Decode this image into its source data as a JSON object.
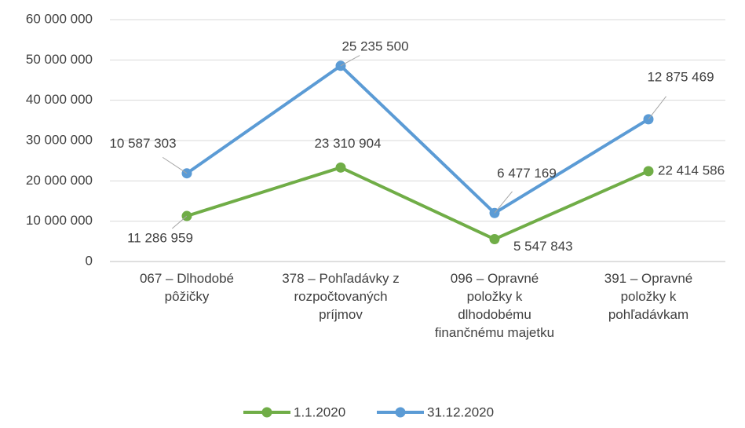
{
  "chart_data": {
    "type": "line",
    "stacked": true,
    "categories": [
      "067 – Dlhodobé pôžičky",
      "378 – Pohľadávky z rozpočtovaných príjmov",
      "096 – Opravné položky k dlhodobému finančnému majetku",
      "391 – Opravné položky k pohľadávkam"
    ],
    "series": [
      {
        "name": "1.1.2020",
        "color": "#70ad47",
        "values": [
          11286959,
          23310904,
          5547843,
          22414586
        ],
        "value_labels": [
          "11 286 959",
          "23 310 904",
          "5 547 843",
          "22 414 586"
        ]
      },
      {
        "name": "31.12.2020",
        "color": "#5b9bd5",
        "values": [
          10587303,
          25235500,
          6477169,
          12875469
        ],
        "value_labels": [
          "10 587 303",
          "25 235 500",
          "6 477 169",
          "12 875 469"
        ]
      }
    ],
    "ylim": [
      0,
      60000000
    ],
    "yticks": [
      0,
      {
        "value": 10000000,
        "label": "10 000 000"
      },
      {
        "value": 20000000,
        "label": "20 000 000"
      },
      {
        "value": 30000000,
        "label": "30 000 000"
      },
      {
        "value": 40000000,
        "label": "40 000 000"
      },
      {
        "value": 50000000,
        "label": "50 000 000"
      },
      {
        "value": 60000000,
        "label": "60 000 000"
      }
    ],
    "grid": true,
    "legend": "bottom"
  }
}
